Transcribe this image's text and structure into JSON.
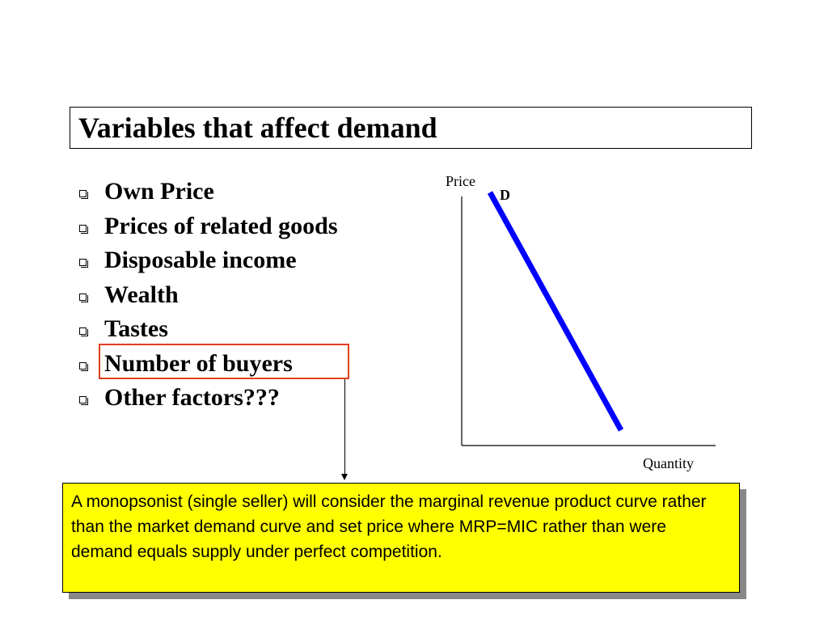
{
  "slide": {
    "title": "Variables that affect demand",
    "bullets": [
      {
        "label": "Own Price",
        "highlighted": false
      },
      {
        "label": "Prices of related goods",
        "highlighted": false
      },
      {
        "label": "Disposable income",
        "highlighted": false
      },
      {
        "label": "Wealth",
        "highlighted": false
      },
      {
        "label": "Tastes",
        "highlighted": false
      },
      {
        "label": "Number of buyers",
        "highlighted": true
      },
      {
        "label": "Other factors???",
        "highlighted": false
      }
    ],
    "highlight_color": "#e0401e"
  },
  "graph": {
    "y_axis_label": "Price",
    "x_axis_label": "Quantity",
    "curve_label": "D",
    "curve_color": "#0000ff",
    "curve_slope": "downward-sloping"
  },
  "note": {
    "text": "A monopsonist (single seller) will consider the marginal revenue product curve rather than the market demand curve and set price where MRP=MIC rather than were demand equals supply under perfect competition.",
    "background_color": "#ffff00"
  }
}
